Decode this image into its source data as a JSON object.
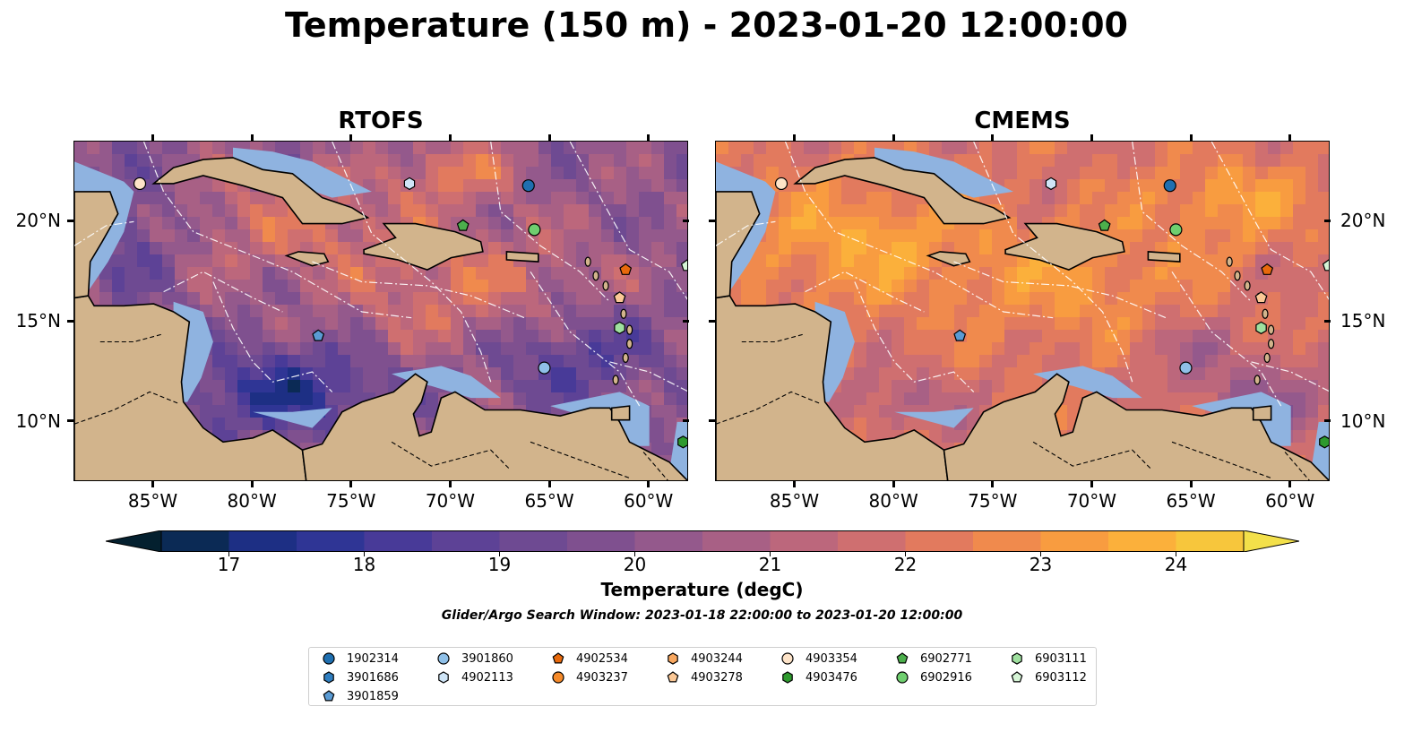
{
  "title": "Temperature (150 m) - 2023-01-20 12:00:00",
  "panels": [
    {
      "title": "RTOFS"
    },
    {
      "title": "CMEMS"
    }
  ],
  "lon_ticks": [
    "85°W",
    "80°W",
    "75°W",
    "70°W",
    "65°W",
    "60°W"
  ],
  "lat_ticks": [
    "20°N",
    "15°N",
    "10°N"
  ],
  "colorbar": {
    "label": "Temperature (degC)",
    "ticks": [
      "17",
      "18",
      "19",
      "20",
      "21",
      "22",
      "23",
      "24"
    ],
    "min": 16.5,
    "max": 24.5,
    "colors": [
      "#04202f",
      "#0b2a55",
      "#1d2f84",
      "#2f3595",
      "#483a98",
      "#5d4296",
      "#6e4a92",
      "#7f508f",
      "#94598c",
      "#a86085",
      "#bc677c",
      "#cf6f70",
      "#e27a5e",
      "#f08a4d",
      "#f89c40",
      "#fbb03b",
      "#f7c63c",
      "#f3e04a"
    ],
    "extend": "both"
  },
  "search_window": "Glider/Argo Search Window: 2023-01-18 22:00:00 to 2023-01-20 12:00:00",
  "legend": [
    {
      "id": "1902314",
      "marker": "circle",
      "color": "#1f6fb0"
    },
    {
      "id": "3901686",
      "marker": "hexagon",
      "color": "#2f7ec0"
    },
    {
      "id": "3901859",
      "marker": "pentagon",
      "color": "#5a9bd4"
    },
    {
      "id": "3901860",
      "marker": "circle",
      "color": "#8fc0e8"
    },
    {
      "id": "4902113",
      "marker": "hexagon",
      "color": "#cfe5f7"
    },
    {
      "id": "4902534",
      "marker": "pentagon",
      "color": "#e8690c"
    },
    {
      "id": "4903237",
      "marker": "circle",
      "color": "#f58a2a"
    },
    {
      "id": "4903244",
      "marker": "hexagon",
      "color": "#f9a860"
    },
    {
      "id": "4903278",
      "marker": "pentagon",
      "color": "#fbc896"
    },
    {
      "id": "4903354",
      "marker": "circle",
      "color": "#fde3c8"
    },
    {
      "id": "4903476",
      "marker": "hexagon",
      "color": "#2e9a2e"
    },
    {
      "id": "6902771",
      "marker": "pentagon",
      "color": "#4caf4c"
    },
    {
      "id": "6902916",
      "marker": "circle",
      "color": "#6fcf6f"
    },
    {
      "id": "6903111",
      "marker": "hexagon",
      "color": "#9fe09f"
    },
    {
      "id": "6903112",
      "marker": "pentagon",
      "color": "#d6f5d6"
    }
  ],
  "floats": [
    {
      "id": "4903354",
      "lon": -85.7,
      "lat": 21.9
    },
    {
      "id": "1902314",
      "lon": -66.1,
      "lat": 21.8
    },
    {
      "id": "4902113",
      "lon": -72.1,
      "lat": 21.9
    },
    {
      "id": "6902771",
      "lon": -69.4,
      "lat": 19.8
    },
    {
      "id": "6902916",
      "lon": -65.8,
      "lat": 19.6
    },
    {
      "id": "4902534",
      "lon": -61.2,
      "lat": 17.6
    },
    {
      "id": "6903112",
      "lon": -58.1,
      "lat": 17.8
    },
    {
      "id": "4903278",
      "lon": -61.5,
      "lat": 16.2
    },
    {
      "id": "6903111",
      "lon": -61.5,
      "lat": 14.7
    },
    {
      "id": "3901859",
      "lon": -76.7,
      "lat": 14.3
    },
    {
      "id": "3901860",
      "lon": -65.3,
      "lat": 12.7
    },
    {
      "id": "4903476",
      "lon": -58.3,
      "lat": 9.0
    }
  ],
  "colors": {
    "land": "#d2b48c",
    "shelf": "#8fb3e0",
    "deep": "#04202f",
    "land_outline": "#000000"
  }
}
